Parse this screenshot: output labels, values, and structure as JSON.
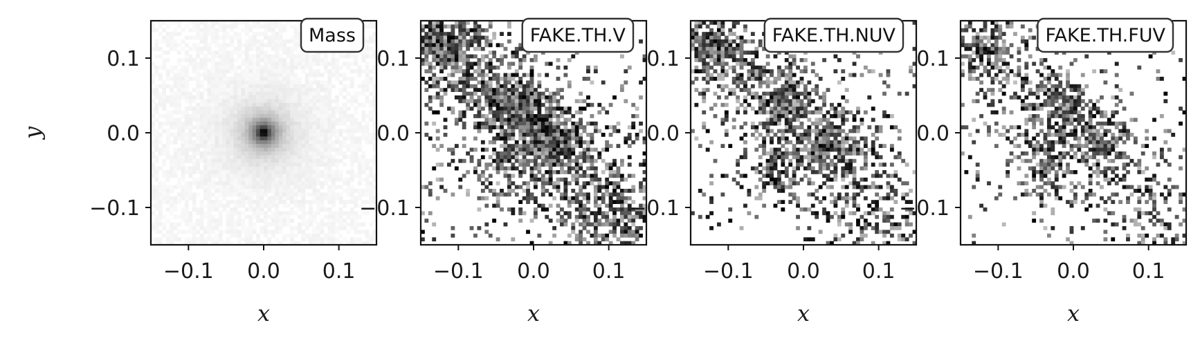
{
  "chart_data": [
    {
      "type": "heatmap",
      "title": "Mass",
      "xlabel": "x",
      "ylabel": "y",
      "xlim": [
        -0.15,
        0.15
      ],
      "ylim": [
        -0.15,
        0.15
      ],
      "xticks": [
        -0.1,
        0.0,
        0.1
      ],
      "yticks": [
        -0.1,
        0.0,
        0.1
      ],
      "xtick_labels": [
        "−0.1",
        "0.0",
        "0.1"
      ],
      "ytick_labels": [
        "−0.1",
        "0.0",
        "0.1"
      ],
      "bins": 60,
      "colormap": "Greys",
      "legend": "top-right",
      "pattern": "mass"
    },
    {
      "type": "heatmap",
      "title": "FAKE.TH.V",
      "xlabel": "x",
      "ylabel": "",
      "xlim": [
        -0.15,
        0.15
      ],
      "ylim": [
        -0.15,
        0.15
      ],
      "xticks": [
        -0.1,
        0.0,
        0.1
      ],
      "yticks": [
        -0.1,
        0.0,
        0.1
      ],
      "xtick_labels": [
        "−0.1",
        "0.0",
        "0.1"
      ],
      "ytick_labels": [
        "−0.1",
        "0.0",
        "0.1"
      ],
      "bins": 60,
      "colormap": "Greys",
      "legend": "top-right",
      "pattern": "scatter",
      "density": 0.55,
      "seed": 11
    },
    {
      "type": "heatmap",
      "title": "FAKE.TH.NUV",
      "xlabel": "x",
      "ylabel": "",
      "xlim": [
        -0.15,
        0.15
      ],
      "ylim": [
        -0.15,
        0.15
      ],
      "xticks": [
        -0.1,
        0.0,
        0.1
      ],
      "yticks": [
        -0.1,
        0.0,
        0.1
      ],
      "xtick_labels": [
        "−0.1",
        "0.0",
        "0.1"
      ],
      "ytick_labels": [
        "−0.1",
        "0.0",
        "0.1"
      ],
      "bins": 60,
      "colormap": "Greys",
      "legend": "top-right",
      "pattern": "scatter",
      "density": 0.42,
      "seed": 23
    },
    {
      "type": "heatmap",
      "title": "FAKE.TH.FUV",
      "xlabel": "x",
      "ylabel": "",
      "xlim": [
        -0.15,
        0.15
      ],
      "ylim": [
        -0.15,
        0.15
      ],
      "xticks": [
        -0.1,
        0.0,
        0.1
      ],
      "yticks": [
        -0.1,
        0.0,
        0.1
      ],
      "xtick_labels": [
        "−0.1",
        "0.0",
        "0.1"
      ],
      "ytick_labels": [
        "−0.1",
        "0.0",
        "0.1"
      ],
      "bins": 60,
      "colormap": "Greys",
      "legend": "top-right",
      "pattern": "scatter",
      "density": 0.32,
      "seed": 37
    }
  ],
  "colors": {
    "frame": "#111111",
    "cell": "#000000",
    "badge_fill": "#ffffff",
    "badge_stroke": "#333333"
  }
}
